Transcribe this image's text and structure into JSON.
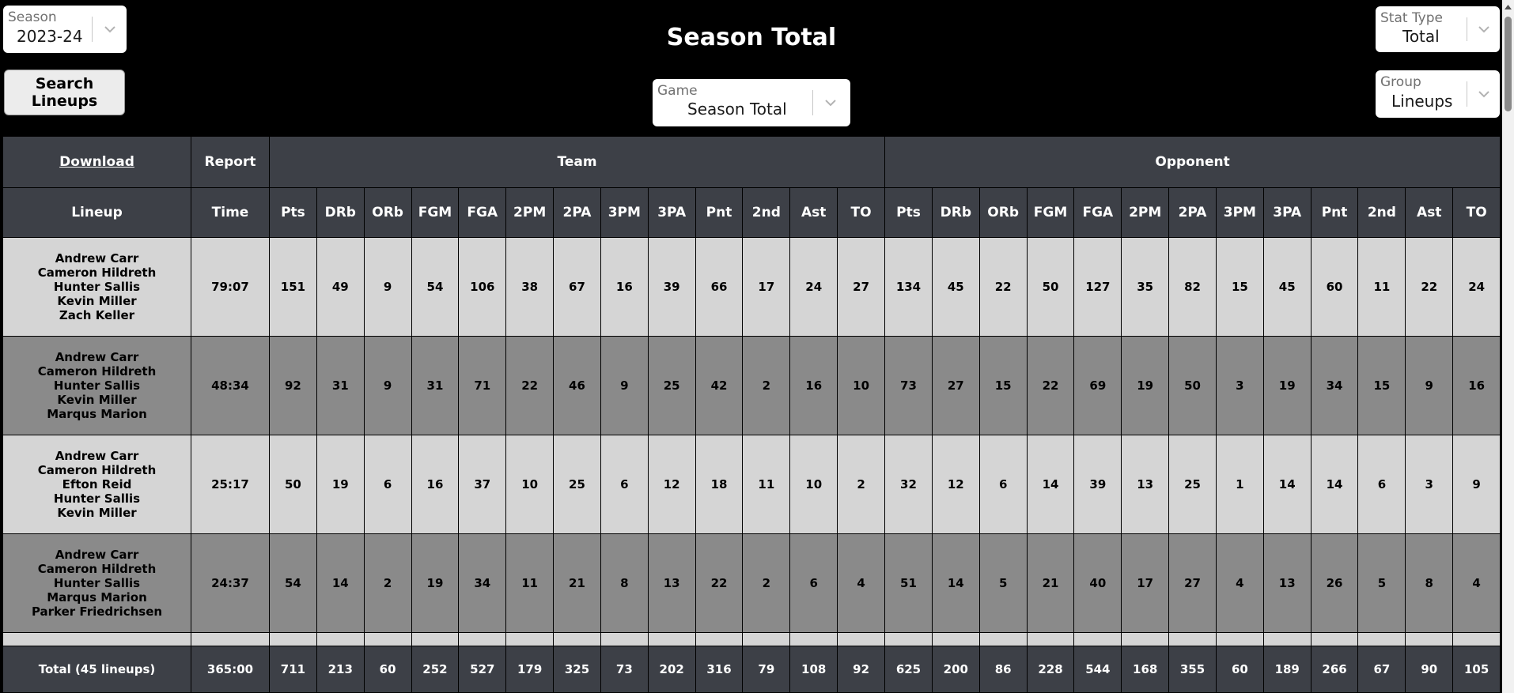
{
  "page": {
    "title": "Season Total"
  },
  "season": {
    "label": "Season",
    "value": "2023-24"
  },
  "stat_type": {
    "label": "Stat Type",
    "value": "Total"
  },
  "group": {
    "label": "Group",
    "value": "Lineups"
  },
  "game": {
    "label": "Game",
    "value": "Season Total"
  },
  "search_button": {
    "label": "Search Lineups"
  },
  "table": {
    "download_label": "Download",
    "report_label": "Report",
    "team_group_label": "Team",
    "opponent_group_label": "Opponent",
    "lineup_header": "Lineup",
    "time_header": "Time",
    "stat_headers": [
      "Pts",
      "DRb",
      "ORb",
      "FGM",
      "FGA",
      "2PM",
      "2PA",
      "3PM",
      "3PA",
      "Pnt",
      "2nd",
      "Ast",
      "TO"
    ],
    "rows": [
      {
        "players": [
          "Andrew Carr",
          "Cameron Hildreth",
          "Hunter Sallis",
          "Kevin Miller",
          "Zach Keller"
        ],
        "time": "79:07",
        "team": [
          "151",
          "49",
          "9",
          "54",
          "106",
          "38",
          "67",
          "16",
          "39",
          "66",
          "17",
          "24",
          "27"
        ],
        "opponent": [
          "134",
          "45",
          "22",
          "50",
          "127",
          "35",
          "82",
          "15",
          "45",
          "60",
          "11",
          "22",
          "24"
        ]
      },
      {
        "players": [
          "Andrew Carr",
          "Cameron Hildreth",
          "Hunter Sallis",
          "Kevin Miller",
          "Marqus Marion"
        ],
        "time": "48:34",
        "team": [
          "92",
          "31",
          "9",
          "31",
          "71",
          "22",
          "46",
          "9",
          "25",
          "42",
          "2",
          "16",
          "10"
        ],
        "opponent": [
          "73",
          "27",
          "15",
          "22",
          "69",
          "19",
          "50",
          "3",
          "19",
          "34",
          "15",
          "9",
          "16"
        ]
      },
      {
        "players": [
          "Andrew Carr",
          "Cameron Hildreth",
          "Efton Reid",
          "Hunter Sallis",
          "Kevin Miller"
        ],
        "time": "25:17",
        "team": [
          "50",
          "19",
          "6",
          "16",
          "37",
          "10",
          "25",
          "6",
          "12",
          "18",
          "11",
          "10",
          "2"
        ],
        "opponent": [
          "32",
          "12",
          "6",
          "14",
          "39",
          "13",
          "25",
          "1",
          "14",
          "14",
          "6",
          "3",
          "9"
        ]
      },
      {
        "players": [
          "Andrew Carr",
          "Cameron Hildreth",
          "Hunter Sallis",
          "Marqus Marion",
          "Parker Friedrichsen"
        ],
        "time": "24:37",
        "team": [
          "54",
          "14",
          "2",
          "19",
          "34",
          "11",
          "21",
          "8",
          "13",
          "22",
          "2",
          "6",
          "4"
        ],
        "opponent": [
          "51",
          "14",
          "5",
          "21",
          "40",
          "17",
          "27",
          "4",
          "13",
          "26",
          "5",
          "8",
          "4"
        ]
      }
    ],
    "total": {
      "label": "Total (45 lineups)",
      "time": "365:00",
      "team": [
        "711",
        "213",
        "60",
        "252",
        "527",
        "179",
        "325",
        "73",
        "202",
        "316",
        "79",
        "108",
        "92"
      ],
      "opponent": [
        "625",
        "200",
        "86",
        "228",
        "544",
        "168",
        "355",
        "60",
        "189",
        "266",
        "67",
        "90",
        "105"
      ]
    }
  }
}
